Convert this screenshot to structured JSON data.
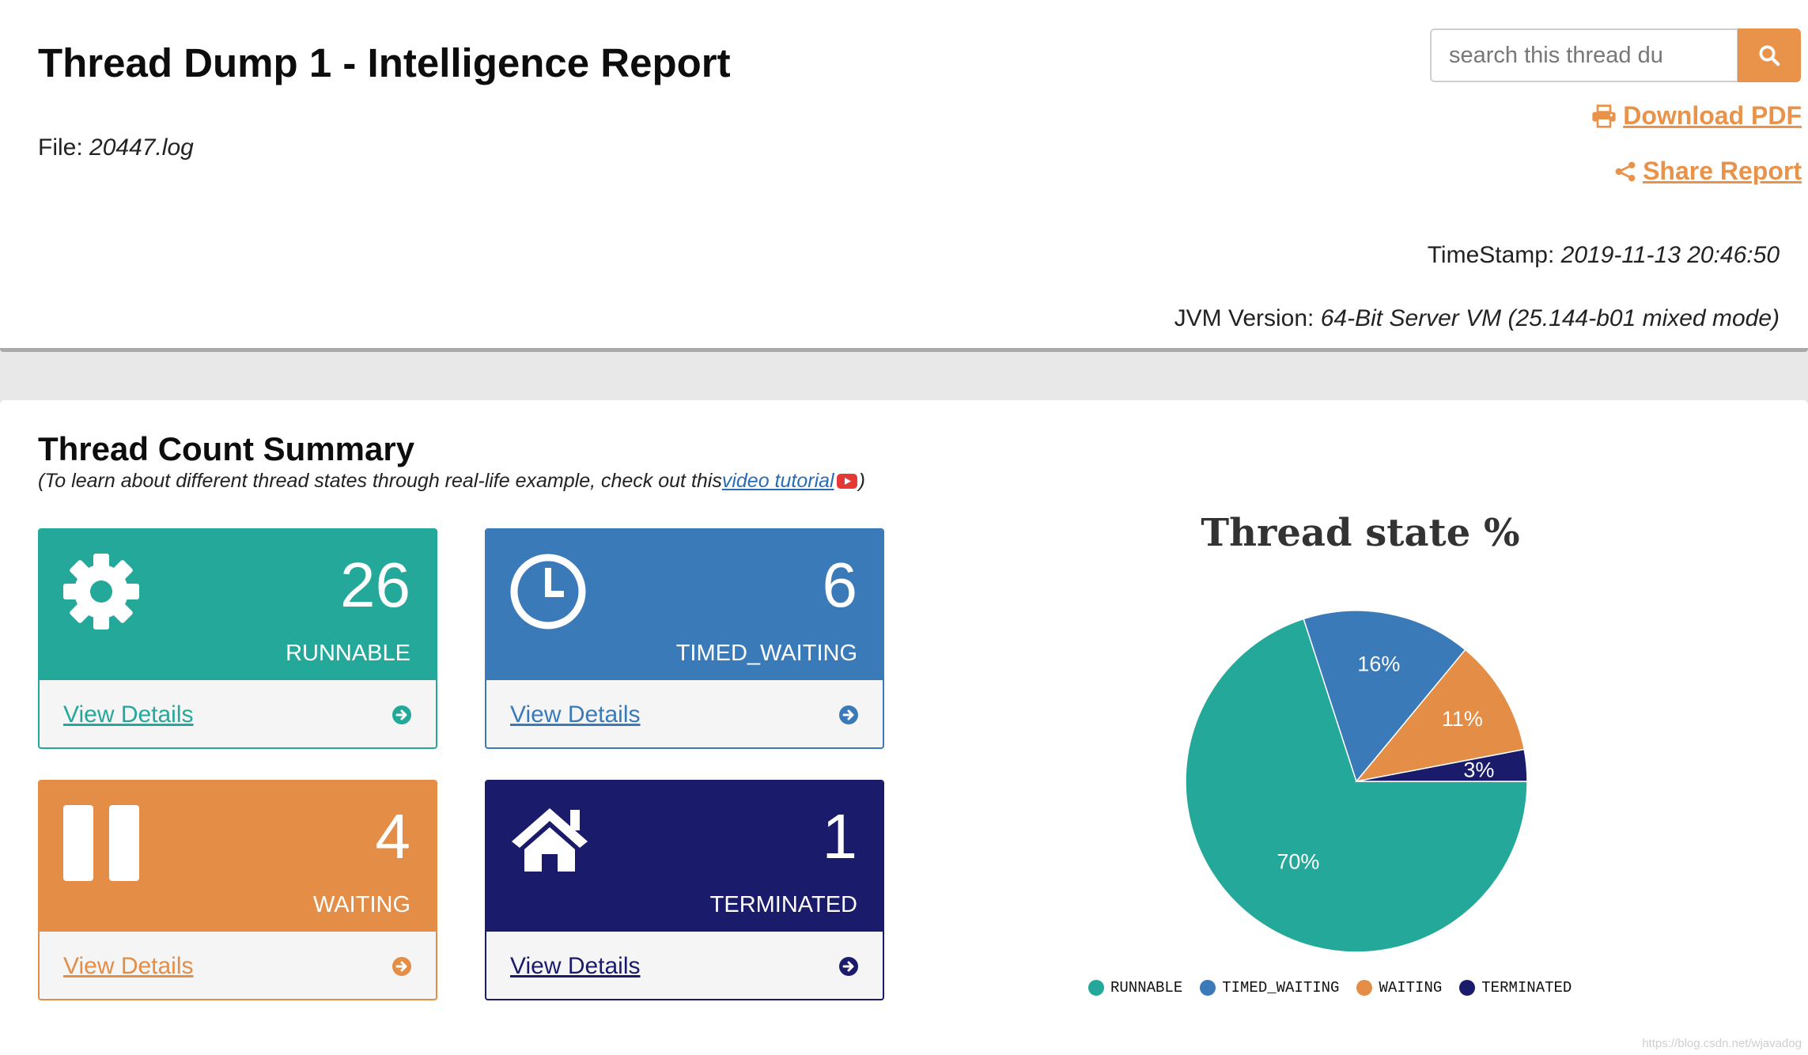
{
  "header": {
    "title": "Thread Dump 1 - Intelligence Report",
    "file_label": "File:",
    "file_name": "20447.log",
    "search_placeholder": "search this thread du",
    "download_label": "Download PDF",
    "share_label": "Share Report",
    "timestamp_label": "TimeStamp:",
    "timestamp_value": "2019-11-13 20:46:50",
    "jvm_label": "JVM Version:",
    "jvm_value": "64-Bit Server VM (25.144-b01 mixed mode)"
  },
  "summary": {
    "title": "Thread Count Summary",
    "subtitle_prefix": "(To learn about different thread states through real-life example, check out this ",
    "video_link": "video tutorial",
    "subtitle_suffix": ")",
    "cards": [
      {
        "count": "26",
        "state": "RUNNABLE",
        "link": "View Details",
        "color": "#24a89a",
        "icon": "gear-icon"
      },
      {
        "count": "6",
        "state": "TIMED_WAITING",
        "link": "View Details",
        "color": "#3a7ab8",
        "icon": "clock-icon"
      },
      {
        "count": "4",
        "state": "WAITING",
        "link": "View Details",
        "color": "#e38d46",
        "icon": "pause-icon"
      },
      {
        "count": "1",
        "state": "TERMINATED",
        "link": "View Details",
        "color": "#1a1c6b",
        "icon": "home-icon"
      }
    ]
  },
  "chart_data": {
    "type": "pie",
    "title": "Thread state %",
    "categories": [
      "RUNNABLE",
      "TIMED_WAITING",
      "WAITING",
      "TERMINATED"
    ],
    "values": [
      70,
      16,
      11,
      3
    ],
    "labels": [
      "70%",
      "16%",
      "11%",
      "3%"
    ],
    "colors": [
      "#24a89a",
      "#3a7ab8",
      "#e38d46",
      "#1a1c6b"
    ],
    "legend_position": "bottom"
  },
  "watermark": "https://blog.csdn.net/wjavadog"
}
